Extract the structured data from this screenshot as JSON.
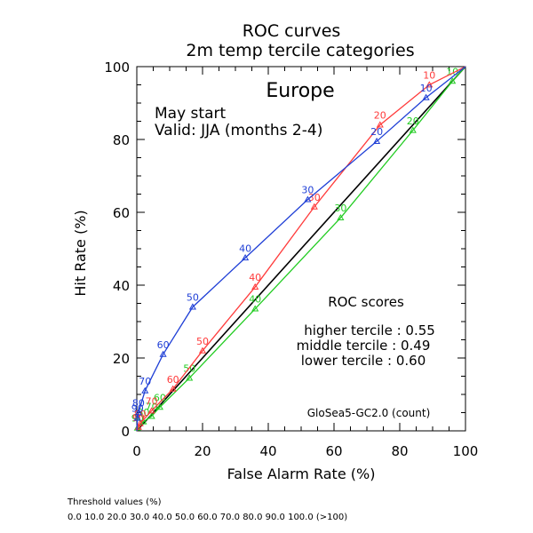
{
  "chart_data": {
    "type": "line",
    "title": "ROC curves",
    "subtitle": "2m temp tercile categories",
    "region": "Europe",
    "start_text": "May start",
    "valid_text": "Valid: JJA (months 2-4)",
    "xlabel": "False Alarm Rate (%)",
    "ylabel": "Hit Rate (%)",
    "xlim": [
      0,
      100
    ],
    "ylim": [
      0,
      100
    ],
    "x_ticks": [
      "0",
      "20",
      "40",
      "60",
      "80",
      "100"
    ],
    "y_ticks": [
      "0",
      "20",
      "40",
      "60",
      "80",
      "100"
    ],
    "grid": false,
    "legend_title": "ROC scores",
    "model_label": "GloSea5-GC2.0 (count)",
    "series": [
      {
        "legend": "higher tercile : 0.55",
        "color": "#ff3b3b",
        "points": [
          {
            "x": 0,
            "y": 0,
            "label": ""
          },
          {
            "x": 0.5,
            "y": 1.0,
            "label": "90"
          },
          {
            "x": 1.0,
            "y": 2.0,
            "label": "80"
          },
          {
            "x": 4.5,
            "y": 5.5,
            "label": "70"
          },
          {
            "x": 11,
            "y": 11.5,
            "label": "60"
          },
          {
            "x": 20,
            "y": 22,
            "label": "50"
          },
          {
            "x": 36,
            "y": 39.5,
            "label": "40"
          },
          {
            "x": 54,
            "y": 61.5,
            "label": "30"
          },
          {
            "x": 74,
            "y": 84,
            "label": "20"
          },
          {
            "x": 89,
            "y": 95,
            "label": "10"
          },
          {
            "x": 100,
            "y": 100,
            "label": ""
          }
        ]
      },
      {
        "legend": "middle tercile : 0.49",
        "color": "#22cc22",
        "points": [
          {
            "x": 0,
            "y": 0,
            "label": ""
          },
          {
            "x": 0.2,
            "y": 0.8,
            "label": "90"
          },
          {
            "x": 2.0,
            "y": 2.5,
            "label": "80"
          },
          {
            "x": 4.5,
            "y": 4.0,
            "label": "70"
          },
          {
            "x": 7.0,
            "y": 6.5,
            "label": "60"
          },
          {
            "x": 16,
            "y": 14.5,
            "label": "50"
          },
          {
            "x": 36,
            "y": 33.5,
            "label": "40"
          },
          {
            "x": 62,
            "y": 58.5,
            "label": "30"
          },
          {
            "x": 84,
            "y": 82.5,
            "label": "20"
          },
          {
            "x": 96,
            "y": 96,
            "label": "10"
          },
          {
            "x": 100,
            "y": 100,
            "label": ""
          }
        ]
      },
      {
        "legend": "lower tercile : 0.60",
        "color": "#1f3fd6",
        "points": [
          {
            "x": 0,
            "y": 0,
            "label": ""
          },
          {
            "x": 0.2,
            "y": 3.5,
            "label": "90"
          },
          {
            "x": 0.5,
            "y": 5.0,
            "label": "80"
          },
          {
            "x": 2.5,
            "y": 11,
            "label": "70"
          },
          {
            "x": 8.0,
            "y": 21,
            "label": "60"
          },
          {
            "x": 17,
            "y": 34,
            "label": "50"
          },
          {
            "x": 33,
            "y": 47.5,
            "label": "40"
          },
          {
            "x": 52,
            "y": 63.5,
            "label": "30"
          },
          {
            "x": 73,
            "y": 79.5,
            "label": "20"
          },
          {
            "x": 88,
            "y": 91.5,
            "label": "10"
          },
          {
            "x": 100,
            "y": 100,
            "label": ""
          }
        ]
      }
    ]
  },
  "footer": {
    "threshold_title": "Threshold values (%)",
    "threshold_values": "0.0 10.0 20.0 30.0 40.0 50.0 60.0 70.0 80.0 90.0 100.0 (>100)"
  }
}
